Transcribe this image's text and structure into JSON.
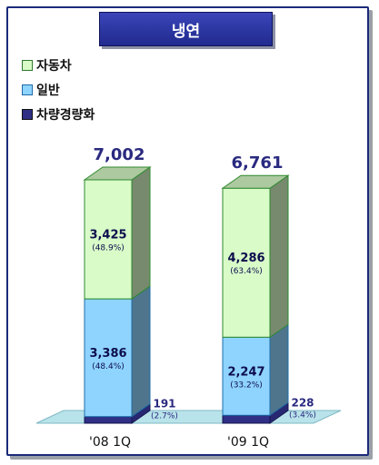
{
  "chart_data": {
    "type": "bar",
    "stacked": true,
    "title": "냉연",
    "categories": [
      "'08 1Q",
      "'09 1Q"
    ],
    "totals": [
      "7,002",
      "6,761"
    ],
    "series": [
      {
        "name": "차량경량화",
        "values": [
          191,
          228
        ],
        "labels": [
          "191",
          "228"
        ],
        "shares": [
          "(2.7%)",
          "(3.4%)"
        ],
        "color": "#2f2f86"
      },
      {
        "name": "일반",
        "values": [
          3386,
          2247
        ],
        "labels": [
          "3,386",
          "2,247"
        ],
        "shares": [
          "(48.4%)",
          "(33.2%)"
        ],
        "color": "#8fd4ff"
      },
      {
        "name": "자동차",
        "values": [
          3425,
          4286
        ],
        "labels": [
          "3,425",
          "4,286"
        ],
        "shares": [
          "(48.9%)",
          "(63.4%)"
        ],
        "color": "#d8fbc8"
      }
    ],
    "legend": {
      "position": "top-left",
      "items": [
        {
          "name": "자동차",
          "color": "#d8fbc8"
        },
        {
          "name": "일반",
          "color": "#8fd4ff"
        },
        {
          "name": "차량경량화",
          "color": "#2f2f86"
        }
      ]
    },
    "grid": false
  }
}
